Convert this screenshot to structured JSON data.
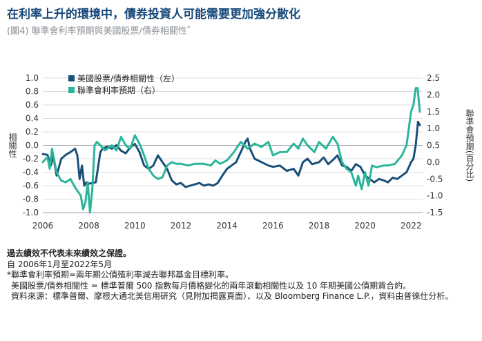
{
  "header": {
    "title": "在利率上升的環境中，債券投資人可能需要更加強分散化",
    "subtitle": "(圖4) 聯準會利率預期與美國股票/債券相關性",
    "subtitle_mark": "*"
  },
  "chart_data": {
    "type": "line",
    "title": "聯準會利率預期與美國股票/債券相關性",
    "ylabel_left": "相關性",
    "ylabel_right": "聯準會預期(百分比)",
    "ylim_left": [
      -1.0,
      1.0
    ],
    "ylim_right": [
      -1.5,
      2.5
    ],
    "yticks_left": [
      "1.0",
      "0.8",
      "0.6",
      "0.4",
      "0.2",
      "0.0",
      "-0.2",
      "-0.4",
      "-0.6",
      "-0.8",
      "-1.0"
    ],
    "yticks_right": [
      "2.5",
      "2.0",
      "1.5",
      "1.0",
      "0.5",
      "0.0",
      "-0.5",
      "-1.0",
      "-1.5"
    ],
    "xticks": [
      "2006",
      "2008",
      "2010",
      "2012",
      "2014",
      "2016",
      "2018",
      "2020",
      "2022"
    ],
    "xlim": [
      2006.0,
      2022.5
    ],
    "legend": [
      "美國股票/債券相關性（左）",
      "聯準會利率預期（右）"
    ],
    "colors": {
      "correlation": "#1a4f78",
      "fed": "#2bb59a"
    },
    "series": [
      {
        "name": "美國股票/債券相關性（左）",
        "axis": "left",
        "x": [
          2006.0,
          2006.2,
          2006.35,
          2006.45,
          2006.6,
          2006.8,
          2007.0,
          2007.2,
          2007.4,
          2007.5,
          2007.6,
          2007.7,
          2007.8,
          2007.9,
          2008.0,
          2008.15,
          2008.3,
          2008.5,
          2008.6,
          2008.8,
          2009.0,
          2009.2,
          2009.4,
          2009.6,
          2009.8,
          2010.0,
          2010.2,
          2010.4,
          2010.6,
          2010.8,
          2011.0,
          2011.2,
          2011.4,
          2011.6,
          2011.8,
          2012.0,
          2012.2,
          2012.4,
          2012.6,
          2012.8,
          2013.0,
          2013.2,
          2013.4,
          2013.6,
          2013.8,
          2014.0,
          2014.2,
          2014.4,
          2014.6,
          2014.8,
          2014.9,
          2015.0,
          2015.2,
          2015.5,
          2015.8,
          2016.0,
          2016.3,
          2016.6,
          2016.9,
          2017.1,
          2017.3,
          2017.5,
          2017.7,
          2018.0,
          2018.2,
          2018.4,
          2018.6,
          2018.8,
          2019.0,
          2019.2,
          2019.4,
          2019.6,
          2019.8,
          2020.0,
          2020.2,
          2020.4,
          2020.6,
          2020.8,
          2021.0,
          2021.2,
          2021.4,
          2021.6,
          2021.8,
          2022.0,
          2022.1,
          2022.2,
          2022.3,
          2022.38
        ],
        "values": [
          -0.13,
          -0.14,
          -0.3,
          -0.15,
          -0.45,
          -0.2,
          -0.14,
          -0.1,
          -0.05,
          -0.15,
          -0.5,
          -0.3,
          -0.6,
          -0.55,
          -0.57,
          -0.56,
          -0.55,
          -0.1,
          -0.05,
          -0.02,
          -0.05,
          0.0,
          -0.08,
          -0.12,
          -0.03,
          0.02,
          -0.1,
          -0.3,
          -0.35,
          -0.3,
          -0.15,
          -0.25,
          -0.35,
          -0.52,
          -0.58,
          -0.56,
          -0.62,
          -0.6,
          -0.58,
          -0.56,
          -0.6,
          -0.58,
          -0.6,
          -0.56,
          -0.45,
          -0.35,
          -0.3,
          -0.25,
          -0.1,
          0.05,
          0.1,
          -0.05,
          -0.2,
          -0.25,
          -0.3,
          -0.32,
          -0.3,
          -0.38,
          -0.35,
          -0.45,
          -0.25,
          -0.2,
          -0.28,
          -0.25,
          -0.18,
          -0.28,
          -0.22,
          -0.15,
          -0.3,
          -0.32,
          -0.38,
          -0.28,
          -0.32,
          -0.45,
          -0.5,
          -0.55,
          -0.5,
          -0.52,
          -0.55,
          -0.48,
          -0.5,
          -0.45,
          -0.4,
          -0.25,
          -0.2,
          0.0,
          0.35,
          0.3
        ]
      },
      {
        "name": "聯準會利率預期（右）",
        "axis": "right",
        "x": [
          2006.0,
          2006.2,
          2006.3,
          2006.4,
          2006.6,
          2006.8,
          2007.0,
          2007.2,
          2007.4,
          2007.55,
          2007.65,
          2007.75,
          2007.85,
          2007.95,
          2008.05,
          2008.15,
          2008.25,
          2008.35,
          2008.5,
          2008.7,
          2008.9,
          2009.0,
          2009.2,
          2009.4,
          2009.6,
          2009.8,
          2010.0,
          2010.2,
          2010.4,
          2010.6,
          2010.8,
          2011.0,
          2011.2,
          2011.4,
          2011.6,
          2011.8,
          2012.0,
          2012.3,
          2012.6,
          2013.0,
          2013.3,
          2013.5,
          2013.7,
          2014.0,
          2014.3,
          2014.6,
          2014.9,
          2015.2,
          2015.5,
          2015.8,
          2016.0,
          2016.3,
          2016.6,
          2016.9,
          2017.1,
          2017.3,
          2017.5,
          2017.8,
          2018.0,
          2018.3,
          2018.6,
          2018.8,
          2019.0,
          2019.2,
          2019.4,
          2019.6,
          2019.7,
          2019.85,
          2020.0,
          2020.15,
          2020.3,
          2020.5,
          2020.8,
          2021.0,
          2021.3,
          2021.6,
          2021.8,
          2022.0,
          2022.1,
          2022.2,
          2022.28,
          2022.38
        ],
        "values": [
          0.0,
          0.15,
          -0.2,
          0.4,
          -0.3,
          -0.55,
          -0.6,
          -0.5,
          -0.75,
          -0.9,
          -1.0,
          -1.4,
          -1.2,
          -0.6,
          -1.5,
          -0.8,
          0.5,
          0.6,
          0.5,
          0.35,
          0.45,
          0.5,
          0.35,
          0.75,
          0.5,
          0.4,
          0.8,
          0.55,
          0.2,
          -0.2,
          -0.4,
          -0.5,
          -0.45,
          -0.1,
          0.0,
          -0.05,
          -0.05,
          -0.1,
          -0.05,
          -0.05,
          -0.1,
          0.05,
          -0.05,
          0.05,
          0.3,
          0.6,
          0.4,
          0.55,
          0.45,
          0.6,
          0.2,
          0.3,
          0.3,
          0.55,
          0.4,
          0.7,
          0.5,
          0.3,
          0.6,
          0.4,
          0.75,
          0.55,
          0.0,
          -0.2,
          -0.3,
          -0.7,
          -0.4,
          -0.8,
          -0.3,
          -0.7,
          -0.1,
          -0.15,
          -0.1,
          -0.1,
          -0.05,
          0.2,
          0.5,
          1.5,
          1.7,
          2.2,
          2.2,
          1.5
        ]
      }
    ]
  },
  "notes": {
    "disclaimer": "過去績效不代表未來績效之保證。",
    "period": "自 2006年1月至2022年5月",
    "footnote": "*聯準會利率預期=兩年期公債殖利率減去聯邦基金目標利率。",
    "definition": "美國股票/債券相關性 = 標準普爾 500 指數每月價格變化的兩年滾動相關性以及 10 年期美國公債期貨合約。",
    "source": "資料來源：標準普爾、摩根大通北美信用研究（見附加揭露頁面）、以及 Bloomberg Finance L.P.，資料由普徠仕分析。"
  }
}
